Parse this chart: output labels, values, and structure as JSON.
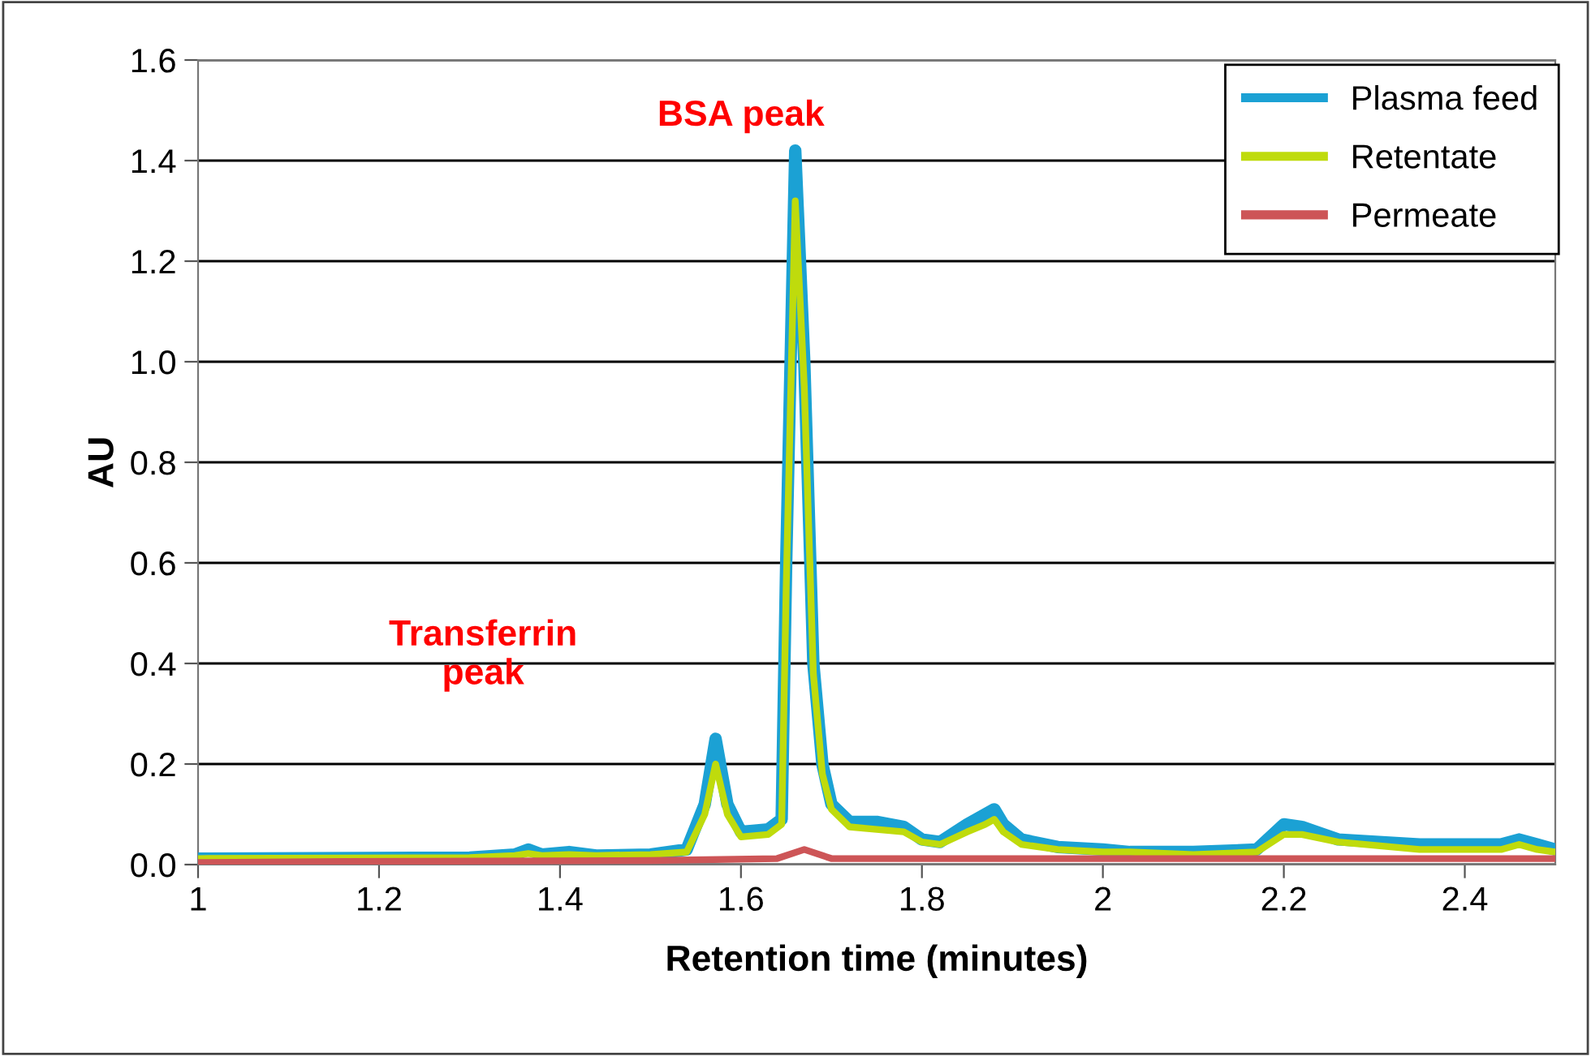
{
  "chart_data": {
    "type": "line",
    "xlabel": "Retention time (minutes)",
    "ylabel": "AU",
    "xlim": [
      1,
      2.5
    ],
    "xticks": [
      1,
      1.2,
      1.4,
      1.6,
      1.8,
      2,
      2.2,
      2.4
    ],
    "ylim": [
      0,
      1.6
    ],
    "yticks": [
      {
        "value": 0,
        "label": "0.0"
      },
      0.2,
      0.4,
      0.6,
      0.8,
      {
        "value": 1,
        "label": "1.0"
      },
      1.2,
      1.4,
      1.6
    ],
    "grid": "y",
    "legend": "top right",
    "line_style": "solid",
    "marker": "none",
    "annotations": [
      "BSA peak",
      "Transferrin\npeak"
    ],
    "series": [
      {
        "name": "Plasma feed",
        "color": "#1ba1d4",
        "x": [
          1.0,
          1.3,
          1.35,
          1.365,
          1.38,
          1.41,
          1.44,
          1.5,
          1.54,
          1.56,
          1.572,
          1.585,
          1.6,
          1.63,
          1.645,
          1.65,
          1.66,
          1.67,
          1.68,
          1.69,
          1.7,
          1.72,
          1.75,
          1.78,
          1.8,
          1.82,
          1.85,
          1.87,
          1.88,
          1.89,
          1.91,
          1.95,
          2.0,
          2.03,
          2.1,
          2.17,
          2.2,
          2.22,
          2.26,
          2.35,
          2.44,
          2.46,
          2.48,
          2.5
        ],
        "values": [
          0.012,
          0.014,
          0.02,
          0.03,
          0.02,
          0.025,
          0.018,
          0.02,
          0.03,
          0.12,
          0.25,
          0.12,
          0.065,
          0.07,
          0.09,
          0.6,
          1.42,
          1.0,
          0.4,
          0.2,
          0.12,
          0.085,
          0.085,
          0.075,
          0.05,
          0.045,
          0.08,
          0.1,
          0.11,
          0.08,
          0.05,
          0.035,
          0.03,
          0.025,
          0.025,
          0.03,
          0.08,
          0.075,
          0.05,
          0.04,
          0.04,
          0.05,
          0.04,
          0.03
        ]
      },
      {
        "name": "Retentate",
        "color": "#bfdb0c",
        "x": [
          1.0,
          1.3,
          1.35,
          1.365,
          1.38,
          1.41,
          1.44,
          1.5,
          1.54,
          1.56,
          1.572,
          1.585,
          1.6,
          1.63,
          1.645,
          1.65,
          1.66,
          1.67,
          1.68,
          1.69,
          1.7,
          1.72,
          1.75,
          1.78,
          1.8,
          1.82,
          1.85,
          1.87,
          1.88,
          1.89,
          1.91,
          1.95,
          2.0,
          2.03,
          2.1,
          2.17,
          2.2,
          2.22,
          2.26,
          2.35,
          2.44,
          2.46,
          2.48,
          2.5
        ],
        "values": [
          0.012,
          0.014,
          0.018,
          0.022,
          0.018,
          0.02,
          0.018,
          0.02,
          0.025,
          0.1,
          0.2,
          0.1,
          0.055,
          0.06,
          0.08,
          0.55,
          1.32,
          0.95,
          0.38,
          0.18,
          0.11,
          0.075,
          0.07,
          0.065,
          0.045,
          0.04,
          0.065,
          0.08,
          0.09,
          0.065,
          0.04,
          0.03,
          0.025,
          0.025,
          0.02,
          0.025,
          0.06,
          0.06,
          0.045,
          0.03,
          0.03,
          0.04,
          0.03,
          0.025
        ]
      },
      {
        "name": "Permeate",
        "color": "#cd5557",
        "x": [
          1.0,
          1.16,
          1.5,
          1.64,
          1.67,
          1.7,
          2.0,
          2.5
        ],
        "values": [
          0.004,
          0.006,
          0.008,
          0.012,
          0.03,
          0.012,
          0.012,
          0.012
        ]
      }
    ]
  }
}
